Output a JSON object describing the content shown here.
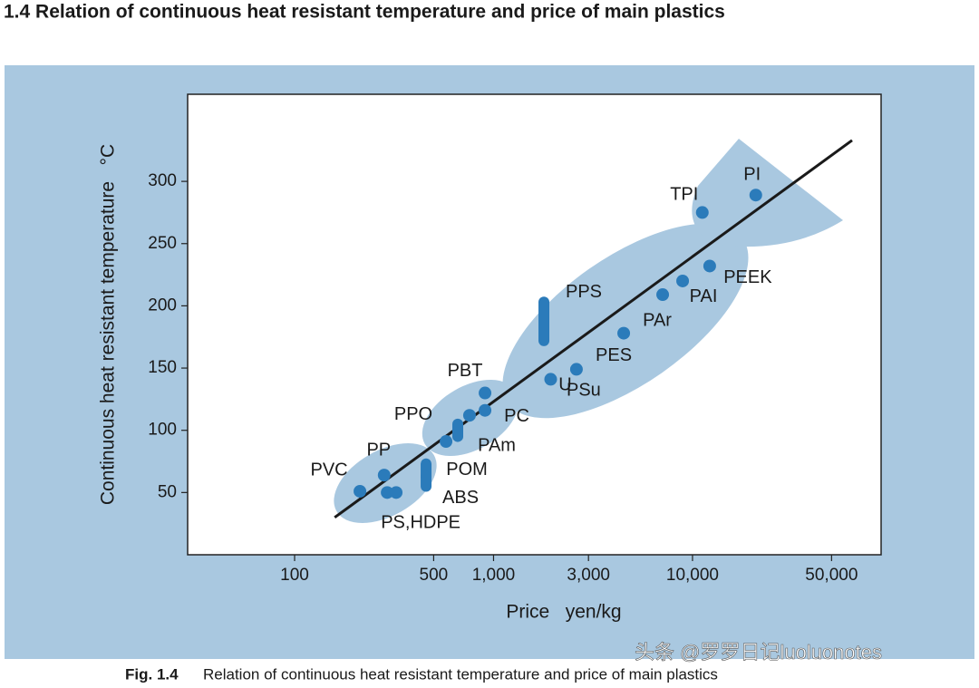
{
  "title": "1.4 Relation of continuous heat resistant temperature and price of main plastics",
  "chart_data": {
    "type": "scatter",
    "x_label": "Price   yen/kg",
    "y_label": "Continuous heat resistant temperature   °C",
    "xscale": "log",
    "xlim": [
      29,
      88700
    ],
    "ylim": [
      0,
      370
    ],
    "xticks": [
      100,
      500,
      {
        "value": 1000,
        "label": "1,000"
      },
      {
        "value": 3000,
        "label": "3,000"
      },
      {
        "value": 10000,
        "label": "10,000"
      },
      {
        "value": 50000,
        "label": "50,000"
      }
    ],
    "yticks": [
      50,
      100,
      150,
      200,
      250,
      300
    ],
    "color": "#2b7bba",
    "points": [
      {
        "name": "PVC",
        "x": 213,
        "y": 51
      },
      {
        "name": "PP",
        "x": 282,
        "y": 64
      },
      {
        "name": "PS,HDPE",
        "x": 292,
        "y": 50
      },
      {
        "name": null,
        "x": 324,
        "y": 50
      },
      {
        "name": "POM",
        "x": 458,
        "y": 63,
        "y_high": 73
      },
      {
        "name": "ABS",
        "x": 458,
        "y": 55,
        "y_high": 63
      },
      {
        "name": "PPO",
        "x": 661,
        "y": 95,
        "y_high": 105
      },
      {
        "name": "PAm",
        "x": 577,
        "y": 91
      },
      {
        "name": null,
        "x": 757,
        "y": 112
      },
      {
        "name": "PBT",
        "x": 906,
        "y": 130
      },
      {
        "name": "PC",
        "x": 906,
        "y": 116
      },
      {
        "name": "U",
        "x": 1937,
        "y": 141
      },
      {
        "name": "PPS",
        "x": 1791,
        "y": 172,
        "y_high": 203
      },
      {
        "name": "PSu",
        "x": 2610,
        "y": 149
      },
      {
        "name": "PES",
        "x": 4510,
        "y": 178
      },
      {
        "name": "PAr",
        "x": 7080,
        "y": 209
      },
      {
        "name": "PAI",
        "x": 8920,
        "y": 220
      },
      {
        "name": "PEEK",
        "x": 12200,
        "y": 232
      },
      {
        "name": "TPI",
        "x": 11200,
        "y": 275
      },
      {
        "name": "PI",
        "x": 20800,
        "y": 289
      }
    ],
    "trend_line": {
      "x": [
        159,
        63400
      ],
      "y": [
        30,
        333
      ]
    }
  },
  "caption": {
    "label": "Fig. 1.4",
    "text": "Relation of continuous heat resistant temperature and price of main plastics"
  },
  "watermark": "头条 @罗罗日记luoluonotes"
}
